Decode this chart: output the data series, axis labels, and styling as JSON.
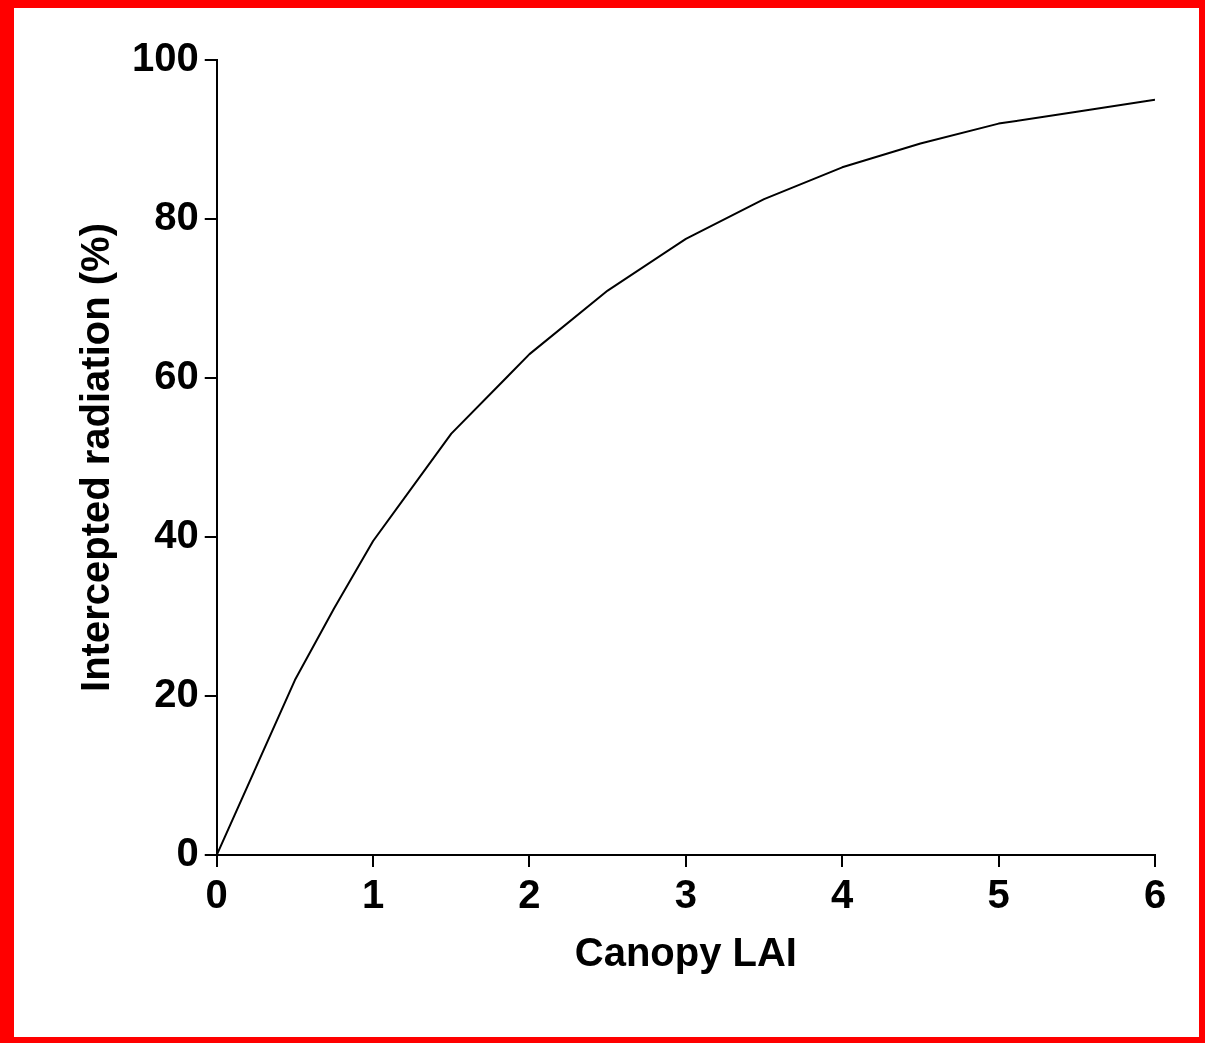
{
  "chart_data": {
    "type": "line",
    "xlabel": "Canopy LAI",
    "ylabel": "Intercepted radiation (%)",
    "x": [
      0,
      0.25,
      0.5,
      0.75,
      1,
      1.5,
      2,
      2.5,
      3,
      3.5,
      4,
      4.5,
      5,
      5.5,
      6
    ],
    "series": [
      {
        "color": "#000000",
        "values": [
          0,
          11,
          22,
          31,
          39.5,
          53,
          63,
          71,
          77.5,
          82.5,
          86.5,
          89.5,
          92,
          93.5,
          95
        ]
      }
    ],
    "xlim": [
      0,
      6
    ],
    "xticks": [
      0,
      1,
      2,
      3,
      4,
      5,
      6
    ],
    "ylim": [
      0,
      100
    ],
    "yticks": [
      0,
      20,
      40,
      60,
      80,
      100
    ],
    "grid": false,
    "legend": false,
    "marker": "none",
    "line_style": "solid"
  }
}
